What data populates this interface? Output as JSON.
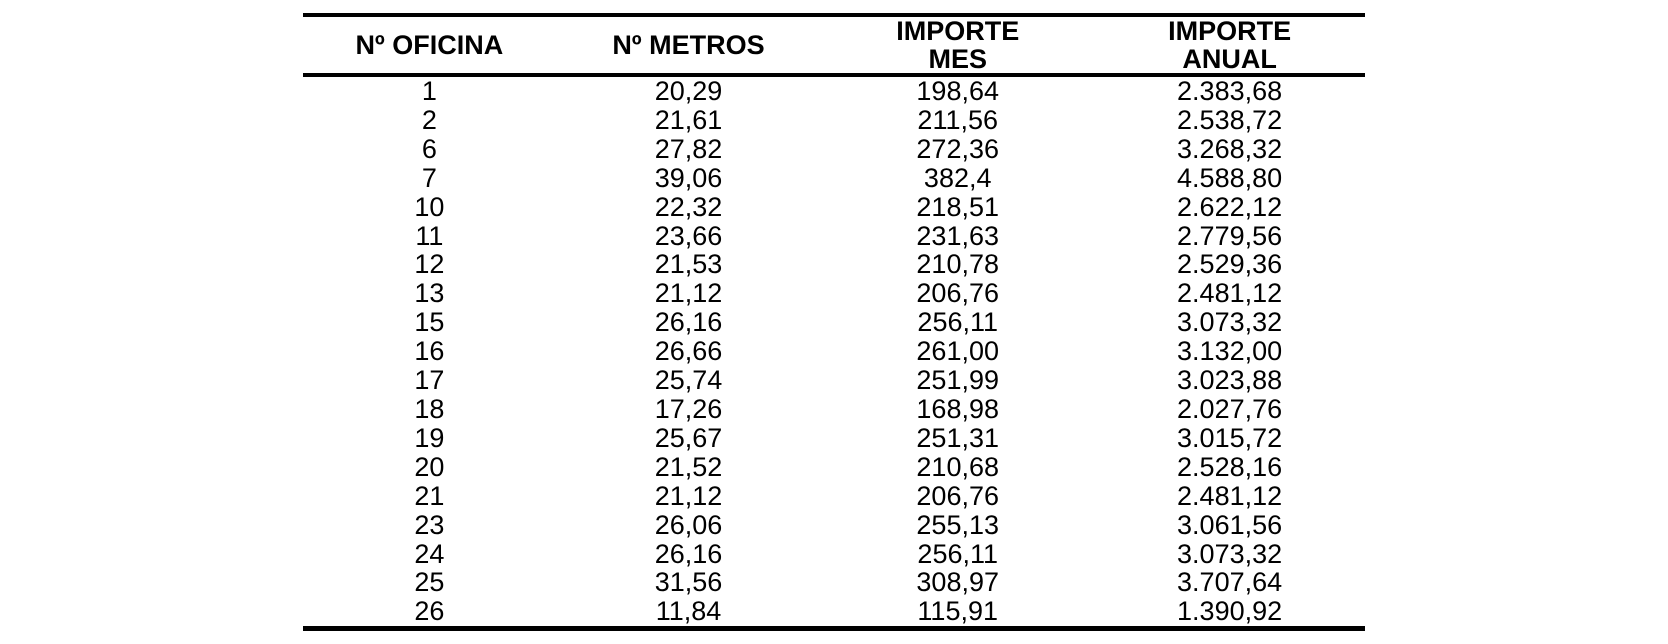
{
  "colors": {
    "background": "#ffffff",
    "text": "#000000",
    "border": "#000000"
  },
  "table": {
    "headers": [
      "Nº OFICINA",
      "Nº METROS",
      "IMPORTE\nMES",
      "IMPORTE\nANUAL"
    ],
    "rows": [
      [
        "1",
        "20,29",
        "198,64",
        "2.383,68"
      ],
      [
        "2",
        "21,61",
        "211,56",
        "2.538,72"
      ],
      [
        "6",
        "27,82",
        "272,36",
        "3.268,32"
      ],
      [
        "7",
        "39,06",
        "382,4",
        "4.588,80"
      ],
      [
        "10",
        "22,32",
        "218,51",
        "2.622,12"
      ],
      [
        "11",
        "23,66",
        "231,63",
        "2.779,56"
      ],
      [
        "12",
        "21,53",
        "210,78",
        "2.529,36"
      ],
      [
        "13",
        "21,12",
        "206,76",
        "2.481,12"
      ],
      [
        "15",
        "26,16",
        "256,11",
        "3.073,32"
      ],
      [
        "16",
        "26,66",
        "261,00",
        "3.132,00"
      ],
      [
        "17",
        "25,74",
        "251,99",
        "3.023,88"
      ],
      [
        "18",
        "17,26",
        "168,98",
        "2.027,76"
      ],
      [
        "19",
        "25,67",
        "251,31",
        "3.015,72"
      ],
      [
        "20",
        "21,52",
        "210,68",
        "2.528,16"
      ],
      [
        "21",
        "21,12",
        "206,76",
        "2.481,12"
      ],
      [
        "23",
        "26,06",
        "255,13",
        "3.061,56"
      ],
      [
        "24",
        "26,16",
        "256,11",
        "3.073,32"
      ],
      [
        "25",
        "31,56",
        "308,97",
        "3.707,64"
      ],
      [
        "26",
        "11,84",
        "115,91",
        "1.390,92"
      ]
    ]
  }
}
